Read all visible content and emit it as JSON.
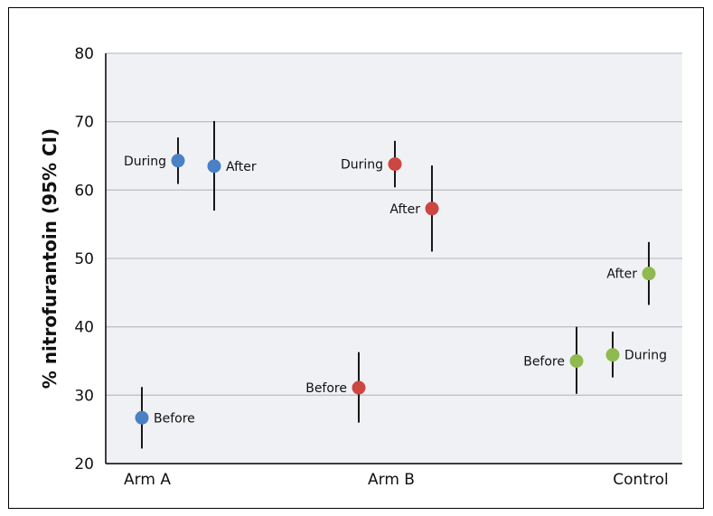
{
  "chart_data": {
    "type": "scatter",
    "ylabel": "% nitrofurantoin (95% CI)",
    "ylim": [
      20,
      80
    ],
    "yticks": [
      20,
      30,
      40,
      50,
      60,
      70,
      80
    ],
    "grid": true,
    "categories": [
      "Arm A",
      "Arm B",
      "Control"
    ],
    "colors": {
      "Arm A": "#4a80c4",
      "Arm B": "#cc4642",
      "Control": "#8fba4f"
    },
    "points": [
      {
        "group": "Arm A",
        "label": "Before",
        "value": 26.7,
        "ci": [
          22.2,
          31.2
        ],
        "pos": 0,
        "label_side": "right"
      },
      {
        "group": "Arm A",
        "label": "During",
        "value": 64.3,
        "ci": [
          60.9,
          67.7
        ],
        "pos": 1,
        "label_side": "left"
      },
      {
        "group": "Arm A",
        "label": "After",
        "value": 63.5,
        "ci": [
          57.0,
          70.1
        ],
        "pos": 2,
        "label_side": "right"
      },
      {
        "group": "Arm B",
        "label": "Before",
        "value": 31.1,
        "ci": [
          26.0,
          36.3
        ],
        "pos": 3,
        "label_side": "left"
      },
      {
        "group": "Arm B",
        "label": "During",
        "value": 63.8,
        "ci": [
          60.4,
          67.2
        ],
        "pos": 4,
        "label_side": "left"
      },
      {
        "group": "Arm B",
        "label": "After",
        "value": 57.3,
        "ci": [
          51.0,
          63.6
        ],
        "pos": 5,
        "label_side": "left"
      },
      {
        "group": "Control",
        "label": "Before",
        "value": 35.0,
        "ci": [
          30.2,
          40.0
        ],
        "pos": 6,
        "label_side": "left"
      },
      {
        "group": "Control",
        "label": "During",
        "value": 35.9,
        "ci": [
          32.6,
          39.3
        ],
        "pos": 7,
        "label_side": "right"
      },
      {
        "group": "Control",
        "label": "After",
        "value": 47.8,
        "ci": [
          43.2,
          52.4
        ],
        "pos": 8,
        "label_side": "left"
      }
    ]
  }
}
